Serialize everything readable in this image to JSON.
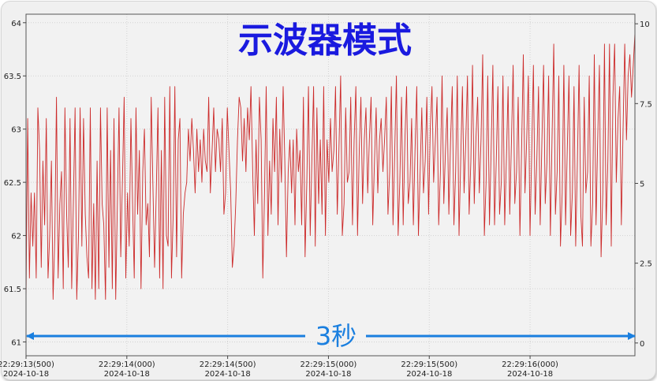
{
  "chart_data": {
    "type": "line",
    "title": "示波器模式",
    "annotation": "3秒",
    "xlabel": "",
    "ylabel": "",
    "grid": true,
    "legend": false,
    "colors": {
      "series": "#cc2a2a",
      "arrow": "#1a7fdf",
      "title": "#1a1adf"
    },
    "ylim": [
      60.87,
      64.08
    ],
    "y2lim": [
      -0.4,
      10.3
    ],
    "yticks": [
      "61",
      "61.5",
      "62",
      "62.5",
      "63",
      "63.5",
      "64"
    ],
    "y2ticks": [
      "0",
      "2.5",
      "5",
      "7.5",
      "10"
    ],
    "xlim": [
      0,
      3.02
    ],
    "xticks": [
      {
        "x": 0.0,
        "time": "22:29:13(500)",
        "date": "2024-10-18"
      },
      {
        "x": 0.5,
        "time": "22:29:14(000)",
        "date": "2024-10-18"
      },
      {
        "x": 1.0,
        "time": "22:29:14(500)",
        "date": "2024-10-18"
      },
      {
        "x": 1.5,
        "time": "22:29:15(000)",
        "date": "2024-10-18"
      },
      {
        "x": 2.0,
        "time": "22:29:15(500)",
        "date": "2024-10-18"
      },
      {
        "x": 2.5,
        "time": "22:29:16(000)",
        "date": "2024-10-18"
      }
    ],
    "series": [
      {
        "y": [
          61.4,
          63.1,
          61.6,
          62.4,
          61.9,
          62.4,
          61.6,
          63.2,
          62.8,
          61.7,
          62.7,
          62.1,
          63.1,
          61.6,
          62.0,
          62.7,
          61.4,
          62.0,
          63.3,
          61.6,
          62.3,
          62.6,
          61.5,
          63.2,
          62.2,
          61.7,
          63.1,
          61.5,
          62.3,
          63.2,
          61.4,
          62.0,
          63.2,
          61.9,
          63.1,
          62.2,
          61.8,
          61.6,
          63.2,
          61.5,
          62.3,
          61.4,
          62.7,
          61.5,
          63.2,
          62.3,
          62.1,
          61.4,
          63.2,
          61.7,
          62.8,
          61.5,
          63.1,
          61.4,
          62.3,
          63.2,
          61.8,
          62.5,
          63.3,
          61.6,
          62.4,
          61.9,
          63.1,
          62.3,
          61.6,
          63.2,
          62.2,
          62.8,
          61.5,
          62.6,
          63.0,
          62.1,
          62.3,
          61.8,
          63.3,
          62.5,
          61.7,
          62.4,
          63.2,
          61.6,
          62.8,
          61.5,
          63.3,
          62.0,
          61.9,
          63.4,
          61.6,
          62.2,
          63.4,
          61.8,
          62.9,
          63.1,
          61.6,
          62.2,
          62.4,
          62.5,
          63.0,
          62.7,
          63.1,
          62.8,
          62.4,
          63.0,
          62.6,
          62.9,
          62.5,
          63.0,
          62.7,
          62.6,
          63.3,
          62.4,
          62.8,
          63.2,
          62.6,
          63.0,
          62.9,
          62.6,
          63.1,
          62.2,
          62.4,
          63.2,
          62.8,
          62.4,
          61.7,
          61.9,
          62.3,
          62.9,
          63.3,
          63.2,
          62.7,
          63.1,
          62.6,
          63.2,
          62.9,
          63.4,
          62.6,
          62.0,
          62.9,
          62.3,
          63.3,
          62.9,
          61.6,
          62.4,
          63.4,
          62.0,
          62.7,
          62.2,
          63.1,
          62.6,
          63.3,
          62.1,
          63.0,
          62.5,
          63.4,
          62.7,
          61.8,
          62.6,
          62.9,
          62.4,
          62.9,
          62.1,
          63.0,
          62.6,
          62.8,
          62.1,
          63.3,
          61.8,
          62.5,
          63.4,
          62.0,
          62.7,
          63.4,
          61.9,
          63.2,
          62.3,
          62.9,
          62.2,
          63.4,
          62.0,
          62.9,
          62.5,
          63.1,
          62.6,
          62.8,
          63.4,
          62.2,
          62.8,
          63.5,
          62.0,
          62.3,
          63.2,
          62.5,
          62.6,
          63.3,
          62.1,
          62.9,
          63.4,
          62.0,
          62.8,
          63.3,
          62.3,
          62.9,
          63.2,
          62.4,
          62.9,
          63.3,
          62.1,
          62.7,
          63.2,
          62.4,
          62.9,
          63.1,
          62.6,
          62.9,
          63.3,
          62.2,
          62.6,
          63.4,
          62.1,
          62.8,
          63.5,
          62.0,
          62.5,
          63.3,
          62.1,
          62.9,
          63.4,
          62.3,
          62.5,
          63.1,
          62.1,
          62.8,
          63.4,
          62.0,
          62.6,
          63.2,
          62.4,
          62.7,
          63.3,
          62.2,
          63.0,
          63.4,
          62.5,
          62.9,
          63.3,
          62.1,
          62.6,
          63.5,
          62.3,
          62.8,
          63.2,
          62.2,
          62.9,
          63.4,
          62.1,
          62.6,
          63.5,
          62.0,
          62.7,
          63.4,
          62.4,
          62.9,
          63.5,
          62.2,
          62.7,
          63.6,
          62.3,
          62.9,
          63.3,
          62.4,
          62.9,
          63.7,
          62.0,
          62.5,
          63.5,
          62.1,
          62.8,
          63.6,
          62.1,
          62.7,
          63.4,
          62.2,
          62.5,
          63.5,
          62.1,
          62.7,
          63.4,
          62.2,
          62.9,
          63.6,
          62.3,
          62.6,
          63.3,
          62.0,
          62.8,
          63.7,
          62.4,
          62.9,
          63.5,
          62.0,
          62.8,
          63.6,
          62.2,
          62.7,
          63.4,
          62.1,
          62.9,
          63.6,
          62.3,
          62.7,
          63.5,
          62.0,
          62.9,
          63.8,
          62.2,
          62.6,
          63.5,
          61.9,
          62.4,
          63.6,
          62.1,
          62.8,
          63.5,
          62.0,
          62.4,
          63.4,
          61.9,
          62.7,
          63.6,
          62.2,
          61.9,
          63.3,
          62.4,
          62.6,
          63.5,
          61.9,
          62.3,
          63.7,
          62.1,
          62.9,
          63.6,
          61.8,
          62.4,
          63.8,
          62.1,
          62.7,
          63.8,
          61.9,
          63.3,
          63.8,
          62.5,
          63.1,
          63.4,
          62.1,
          63.0,
          63.8,
          62.9,
          63.5,
          63.7,
          63.3,
          63.6,
          63.9
        ]
      }
    ]
  }
}
